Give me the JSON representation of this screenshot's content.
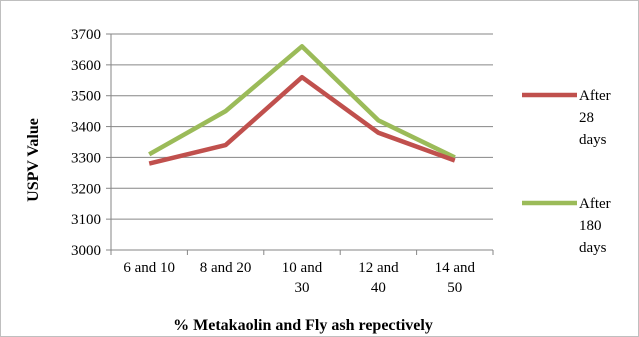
{
  "chart_data": {
    "type": "line",
    "title": "",
    "xlabel": "% Metakaolin and Fly ash repectively",
    "ylabel": "USPV Value",
    "categories": [
      [
        "6 and 10"
      ],
      [
        "8 and 20"
      ],
      [
        "10 and",
        "30"
      ],
      [
        "12 and",
        "40"
      ],
      [
        "14 and",
        "50"
      ]
    ],
    "ylim": [
      3000,
      3700
    ],
    "yticks": [
      3000,
      3100,
      3200,
      3300,
      3400,
      3500,
      3600,
      3700
    ],
    "grid": true,
    "legend_position": "right",
    "series": [
      {
        "name": [
          "After",
          "28",
          "days"
        ],
        "color": "#c0504d",
        "values": [
          3280,
          3340,
          3560,
          3380,
          3290
        ]
      },
      {
        "name": [
          "After",
          "180",
          "days"
        ],
        "color": "#9bbb59",
        "values": [
          3310,
          3450,
          3660,
          3420,
          3300
        ]
      }
    ]
  }
}
